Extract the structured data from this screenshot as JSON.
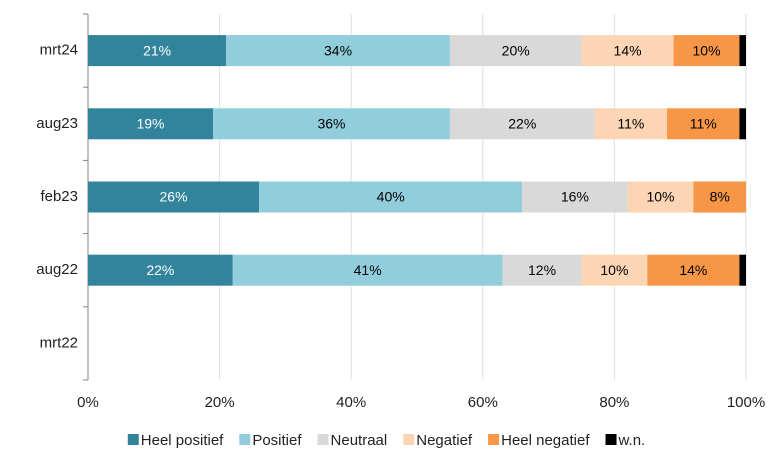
{
  "chart_data": {
    "type": "stacked_barh",
    "categories": [
      "mrt24",
      "aug23",
      "feb23",
      "aug22",
      "mrt22"
    ],
    "series": [
      {
        "name": "Heel positief",
        "color": "#31849b",
        "values": [
          21,
          19,
          26,
          22,
          null
        ],
        "value_labels": [
          "21%",
          "19%",
          "26%",
          "22%",
          null
        ]
      },
      {
        "name": "Positief",
        "color": "#92cddc",
        "values": [
          34,
          36,
          40,
          41,
          null
        ],
        "value_labels": [
          "34%",
          "36%",
          "40%",
          "41%",
          null
        ]
      },
      {
        "name": "Neutraal",
        "color": "#d9d9d9",
        "values": [
          20,
          22,
          16,
          12,
          null
        ],
        "value_labels": [
          "20%",
          "22%",
          "16%",
          "12%",
          null
        ]
      },
      {
        "name": "Negatief",
        "color": "#fcd5b5",
        "values": [
          14,
          11,
          10,
          10,
          null
        ],
        "value_labels": [
          "14%",
          "11%",
          "10%",
          "10%",
          null
        ]
      },
      {
        "name": "Heel negatief",
        "color": "#f79646",
        "values": [
          10,
          11,
          8,
          14,
          null
        ],
        "value_labels": [
          "10%",
          "11%",
          "8%",
          "14%",
          null
        ]
      },
      {
        "name": "w.n.",
        "color": "#000000",
        "values": [
          1,
          1,
          0,
          1,
          null
        ]
      }
    ],
    "xlim": [
      0,
      100
    ],
    "xticks": [
      {
        "value": 0,
        "label": "0%"
      },
      {
        "value": 20,
        "label": "20%"
      },
      {
        "value": 40,
        "label": "40%"
      },
      {
        "value": 60,
        "label": "60%"
      },
      {
        "value": 80,
        "label": "80%"
      },
      {
        "value": 100,
        "label": "100%"
      }
    ],
    "grid": true,
    "legend": "bottom"
  }
}
